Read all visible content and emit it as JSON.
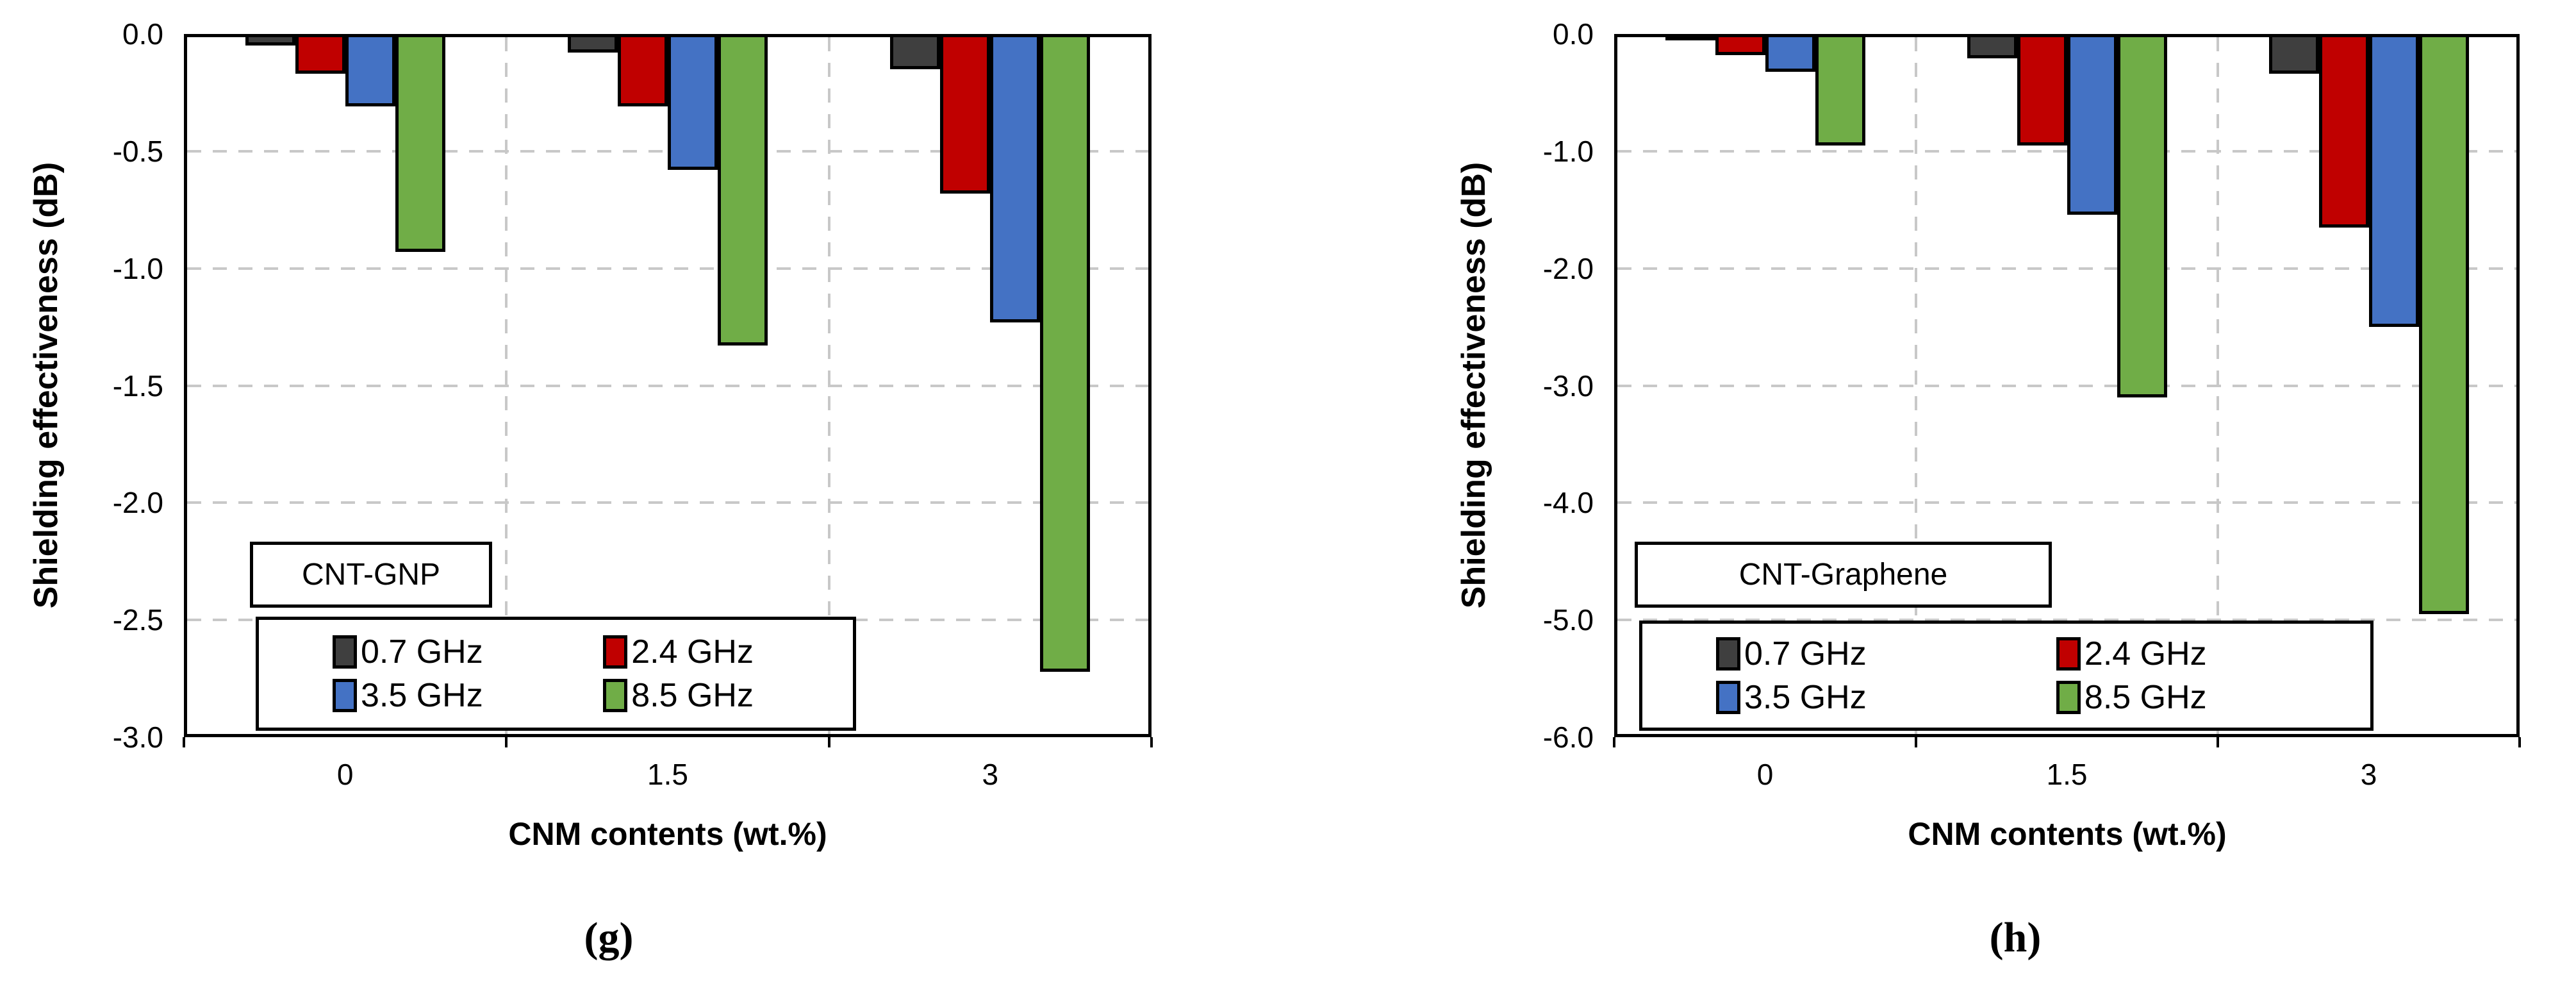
{
  "chart_data": [
    {
      "type": "bar",
      "panel": "g",
      "title": "CNT-GNP",
      "caption": "(g)",
      "xlabel": "CNM contents (wt.%)",
      "ylabel": "Shielding effectiveness (dB)",
      "categories": [
        "0",
        "1.5",
        "3"
      ],
      "series": [
        {
          "name": "0.7 GHz",
          "color": "#3f3f3f",
          "hatched": true,
          "values": [
            -0.05,
            -0.08,
            -0.15
          ]
        },
        {
          "name": "2.4 GHz",
          "color": "#c00000",
          "hatched": false,
          "values": [
            -0.17,
            -0.31,
            -0.68
          ]
        },
        {
          "name": "3.5 GHz",
          "color": "#4472c4",
          "hatched": false,
          "values": [
            -0.31,
            -0.58,
            -1.23
          ]
        },
        {
          "name": "8.5 GHz",
          "color": "#70ad47",
          "hatched": false,
          "values": [
            -0.93,
            -1.33,
            -2.72
          ]
        }
      ],
      "ylim": [
        0.0,
        -3.0
      ],
      "y_tick_step": -0.5,
      "y_tick_labels": [
        "0.0",
        "-0.5",
        "-1.0",
        "-1.5",
        "-2.0",
        "-2.5",
        "-3.0"
      ],
      "grid": "dashed",
      "legend_position": "inside-bottom-left",
      "legend_entries": [
        "0.7 GHz",
        "2.4 GHz",
        "3.5 GHz",
        "8.5 GHz"
      ]
    },
    {
      "type": "bar",
      "panel": "h",
      "title": "CNT-Graphene",
      "caption": "(h)",
      "xlabel": "CNM contents (wt.%)",
      "ylabel": "Shielding effectiveness (dB)",
      "categories": [
        "0",
        "1.5",
        "3"
      ],
      "series": [
        {
          "name": "0.7 GHz",
          "color": "#3f3f3f",
          "hatched": false,
          "values": [
            -0.05,
            -0.21,
            -0.34
          ]
        },
        {
          "name": "2.4 GHz",
          "color": "#c00000",
          "hatched": false,
          "values": [
            -0.18,
            -0.95,
            -1.65
          ]
        },
        {
          "name": "3.5 GHz",
          "color": "#4472c4",
          "hatched": false,
          "values": [
            -0.32,
            -1.54,
            -2.5
          ]
        },
        {
          "name": "8.5 GHz",
          "color": "#70ad47",
          "hatched": false,
          "values": [
            -0.95,
            -3.1,
            -4.95
          ]
        }
      ],
      "ylim": [
        0.0,
        -6.0
      ],
      "y_tick_step": -1.0,
      "y_tick_labels": [
        "0.0",
        "-1.0",
        "-2.0",
        "-3.0",
        "-4.0",
        "-5.0",
        "-6.0"
      ],
      "grid": "dashed",
      "legend_position": "inside-bottom-left",
      "legend_entries": [
        "0.7 GHz",
        "2.4 GHz",
        "3.5 GHz",
        "8.5 GHz"
      ]
    }
  ]
}
